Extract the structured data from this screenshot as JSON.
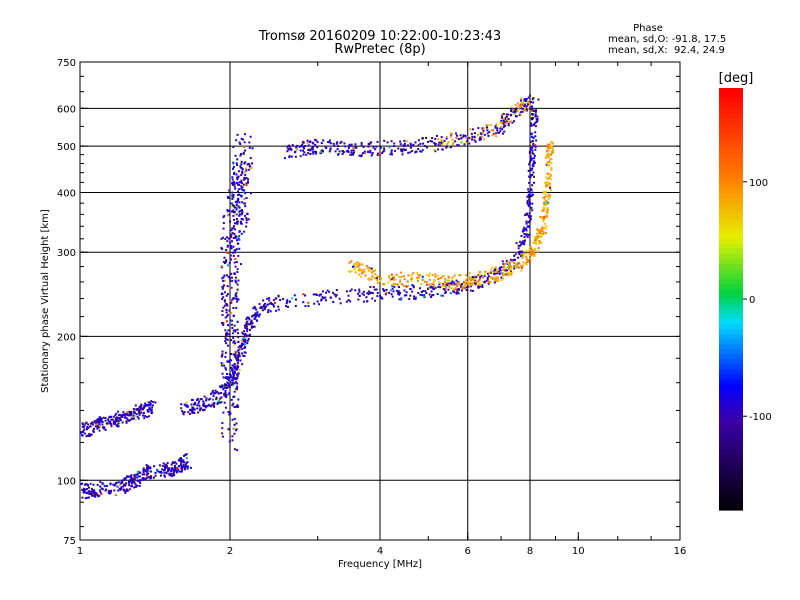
{
  "chart_data": {
    "type": "scatter",
    "title": "Tromsø 20160209 10:22:00-10:23:43",
    "subtitle": "RwPretec (8p)",
    "stats": {
      "heading": "Phase",
      "line_o": "mean, sd,O: -91.8, 17.5",
      "line_x": "mean, sd,X:  92.4, 24.9"
    },
    "xlabel": "Frequency [MHz]",
    "ylabel": "Stationary phase Virtual Height [km]",
    "x_scale": "log",
    "y_scale": "log",
    "xlim": [
      1,
      16
    ],
    "ylim": [
      75,
      750
    ],
    "x_ticks": [
      1,
      2,
      4,
      6,
      8,
      10,
      16
    ],
    "x_tick_labels": [
      "1",
      "2",
      "4",
      "6",
      "8",
      "10",
      "16"
    ],
    "y_ticks": [
      75,
      100,
      200,
      300,
      400,
      500,
      600,
      750
    ],
    "y_tick_labels": [
      "75",
      "100",
      "200",
      "300",
      "400",
      "500",
      "600",
      "750"
    ],
    "grid_x": [
      2,
      4,
      6,
      8
    ],
    "grid_y": [
      100,
      200,
      300,
      400,
      500,
      600
    ],
    "colorbar": {
      "label": "[deg]",
      "range": [
        -180,
        180
      ],
      "ticks": [
        100,
        0,
        -100
      ],
      "tick_labels": [
        "100",
        "0",
        "-100"
      ]
    },
    "series": [
      {
        "trace": [
          [
            1.0,
            128
          ],
          [
            1.05,
            128
          ],
          [
            1.1,
            131
          ],
          [
            1.15,
            133
          ],
          [
            1.2,
            134
          ],
          [
            1.25,
            137
          ],
          [
            1.3,
            139
          ],
          [
            1.35,
            140
          ],
          [
            1.4,
            142
          ]
        ]
      },
      {
        "trace": [
          [
            1.0,
            95
          ],
          [
            1.05,
            95
          ],
          [
            1.1,
            96
          ],
          [
            1.2,
            96
          ],
          [
            1.25,
            99
          ],
          [
            1.3,
            100
          ],
          [
            1.35,
            104
          ],
          [
            1.4,
            104
          ],
          [
            1.5,
            105
          ],
          [
            1.55,
            106
          ],
          [
            1.6,
            108
          ],
          [
            1.65,
            110
          ]
        ]
      },
      {
        "trace": [
          [
            1.6,
            140
          ],
          [
            1.7,
            143
          ],
          [
            1.8,
            145
          ],
          [
            1.9,
            150
          ],
          [
            2.0,
            160
          ],
          [
            2.05,
            170
          ],
          [
            2.1,
            185
          ],
          [
            2.15,
            200
          ],
          [
            2.2,
            215
          ],
          [
            2.3,
            230
          ],
          [
            2.5,
            235
          ],
          [
            3.0,
            240
          ],
          [
            3.5,
            244
          ],
          [
            4.0,
            246
          ],
          [
            4.5,
            247
          ],
          [
            5.0,
            248
          ],
          [
            5.5,
            252
          ],
          [
            6.0,
            256
          ],
          [
            6.5,
            262
          ],
          [
            7.0,
            272
          ],
          [
            7.5,
            290
          ],
          [
            7.8,
            320
          ],
          [
            7.95,
            360
          ],
          [
            8.05,
            420
          ],
          [
            8.1,
            480
          ],
          [
            8.15,
            560
          ],
          [
            8.2,
            620
          ]
        ]
      },
      {
        "trace": [
          [
            3.5,
            280
          ],
          [
            3.7,
            275
          ],
          [
            4.0,
            265
          ],
          [
            4.5,
            262
          ],
          [
            5.0,
            262
          ],
          [
            5.5,
            258
          ],
          [
            6.0,
            262
          ],
          [
            6.5,
            265
          ],
          [
            7.0,
            272
          ],
          [
            7.5,
            282
          ],
          [
            8.0,
            295
          ],
          [
            8.3,
            315
          ],
          [
            8.5,
            340
          ],
          [
            8.6,
            380
          ],
          [
            8.7,
            420
          ],
          [
            8.75,
            480
          ],
          [
            8.8,
            500
          ]
        ]
      },
      {
        "trace": [
          [
            2.6,
            485
          ],
          [
            2.8,
            495
          ],
          [
            3.0,
            500
          ],
          [
            3.3,
            495
          ],
          [
            3.6,
            492
          ],
          [
            4.0,
            495
          ],
          [
            4.5,
            497
          ],
          [
            5.0,
            503
          ],
          [
            5.5,
            512
          ],
          [
            6.0,
            520
          ],
          [
            6.5,
            535
          ],
          [
            7.0,
            550
          ],
          [
            7.2,
            570
          ],
          [
            7.5,
            590
          ],
          [
            7.8,
            610
          ],
          [
            8.0,
            620
          ]
        ]
      },
      {
        "trace": [
          [
            2.0,
            130
          ],
          [
            2.0,
            160
          ],
          [
            2.0,
            200
          ],
          [
            2.0,
            250
          ],
          [
            2.0,
            300
          ],
          [
            2.05,
            340
          ],
          [
            2.1,
            380
          ],
          [
            2.1,
            420
          ],
          [
            2.15,
            480
          ]
        ]
      }
    ]
  }
}
